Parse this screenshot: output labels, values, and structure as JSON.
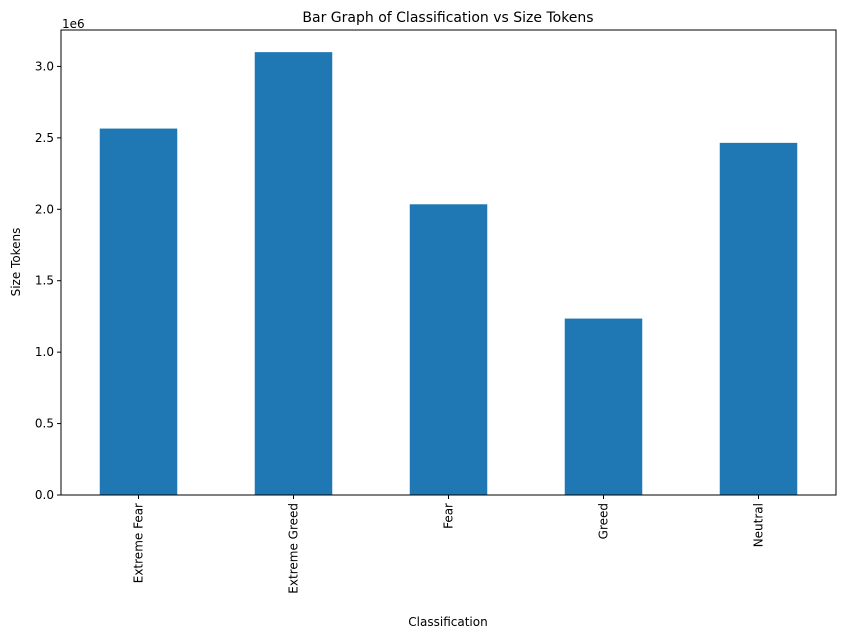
{
  "chart_data": {
    "type": "bar",
    "title": "Bar Graph of Classification vs Size Tokens",
    "xlabel": "Classification",
    "ylabel": "Size Tokens",
    "offset_label": "1e6",
    "categories": [
      "Extreme Fear",
      "Extreme Greed",
      "Fear",
      "Greed",
      "Neutral"
    ],
    "values": [
      2565000,
      3100000,
      2035000,
      1235000,
      2465000
    ],
    "ylim": [
      0,
      3255000
    ],
    "yticks": [
      0,
      500000,
      1000000,
      1500000,
      2000000,
      2500000,
      3000000
    ],
    "ytick_labels": [
      "0.0",
      "0.5",
      "1.0",
      "1.5",
      "2.0",
      "2.5",
      "3.0"
    ],
    "grid": false,
    "bar_color": "#1f77b4"
  }
}
